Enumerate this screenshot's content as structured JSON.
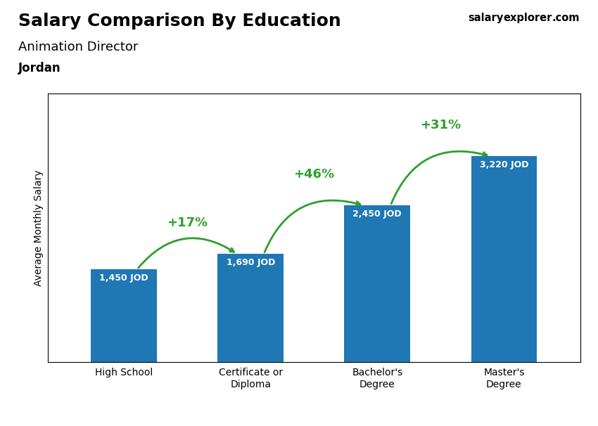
{
  "chart_data": {
    "type": "bar",
    "title": "Salary Comparison By Education",
    "subtitle": "Animation Director",
    "country": "Jordan",
    "watermark": [
      "salary",
      "explorer",
      ".com"
    ],
    "ylabel": "Average Monthly Salary",
    "categories": [
      "High School",
      "Certificate or\nDiploma",
      "Bachelor's\nDegree",
      "Master's\nDegree"
    ],
    "values": [
      1450,
      1690,
      2450,
      3220
    ],
    "value_labels": [
      "1,450 JOD",
      "1,690 JOD",
      "2,450 JOD",
      "3,220 JOD"
    ],
    "data_labels": true,
    "annotations": [
      "+17%",
      "+46%",
      "+31%"
    ],
    "ylim": [
      0,
      4200
    ],
    "tick_labels": "x",
    "grid": false
  }
}
